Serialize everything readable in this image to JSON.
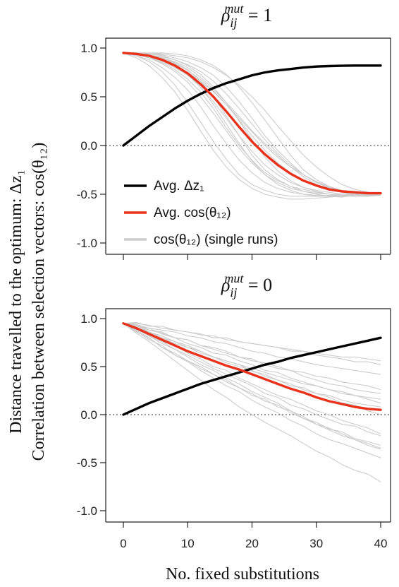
{
  "figure": {
    "ylabel_line1": "Distance travelled to the optimum: Δz₁",
    "ylabel_line2": "Correlation between selection vectors: cos(θ₁₂)",
    "xlabel": "No. fixed substitutions"
  },
  "chart_data": [
    {
      "type": "line",
      "title": "ρ_ij^mut = 1",
      "title_base": "ρ",
      "title_sub": "ij",
      "title_sup": "mut",
      "title_rest": " = 1",
      "xlabel": "No. fixed substitutions",
      "xlim": [
        0,
        40
      ],
      "ylim": [
        -1.0,
        1.0
      ],
      "x_ticks": [
        0,
        10,
        20,
        30,
        40
      ],
      "y_ticks": [
        "1.0",
        "0.5",
        "0.0",
        "-0.5",
        "-1.0"
      ],
      "y_tick_values": [
        1.0,
        0.5,
        0.0,
        -0.5,
        -1.0
      ],
      "reference_line": 0.0,
      "legend": {
        "placement": "lower-left",
        "entries": [
          {
            "label": "Avg. Δz₁",
            "color": "#000000"
          },
          {
            "label": "Avg. cos(θ₁₂)",
            "color": "#e8321c"
          },
          {
            "label": "cos(θ₁₂) (single runs)",
            "color": "#cccccc"
          }
        ]
      },
      "series": [
        {
          "name": "Avg. Δz₁",
          "color": "#000000",
          "x": [
            0,
            2,
            4,
            6,
            8,
            10,
            12,
            14,
            16,
            18,
            20,
            22,
            24,
            26,
            28,
            30,
            32,
            34,
            36,
            38,
            40
          ],
          "y": [
            0.0,
            0.1,
            0.2,
            0.29,
            0.38,
            0.46,
            0.53,
            0.59,
            0.64,
            0.68,
            0.72,
            0.75,
            0.77,
            0.785,
            0.8,
            0.81,
            0.815,
            0.818,
            0.82,
            0.82,
            0.82
          ]
        },
        {
          "name": "Avg. cos(θ₁₂)",
          "color": "#e8321c",
          "x": [
            0,
            2,
            4,
            6,
            8,
            10,
            12,
            14,
            16,
            18,
            20,
            22,
            24,
            26,
            28,
            30,
            32,
            34,
            36,
            38,
            40
          ],
          "y": [
            0.95,
            0.94,
            0.92,
            0.88,
            0.82,
            0.74,
            0.63,
            0.5,
            0.35,
            0.19,
            0.04,
            -0.09,
            -0.2,
            -0.29,
            -0.36,
            -0.41,
            -0.45,
            -0.47,
            -0.48,
            -0.49,
            -0.49
          ]
        }
      ],
      "single_runs": {
        "label": "cos(θ₁₂) (single runs)",
        "color": "#cccccc",
        "x": [
          0,
          2,
          4,
          6,
          8,
          10,
          12,
          14,
          16,
          18,
          20,
          22,
          24,
          26,
          28,
          30,
          32,
          34,
          36,
          38,
          40
        ],
        "runs": [
          [
            0.95,
            0.94,
            0.92,
            0.9,
            0.85,
            0.78,
            0.66,
            0.5,
            0.3,
            0.1,
            -0.1,
            -0.25,
            -0.35,
            -0.42,
            -0.47,
            -0.5,
            -0.52,
            -0.53,
            -0.5,
            -0.52,
            -0.51
          ],
          [
            0.95,
            0.93,
            0.9,
            0.85,
            0.78,
            0.68,
            0.55,
            0.38,
            0.18,
            0.0,
            -0.15,
            -0.28,
            -0.36,
            -0.42,
            -0.45,
            -0.48,
            -0.5,
            -0.5,
            -0.49,
            -0.5,
            -0.5
          ],
          [
            0.95,
            0.95,
            0.94,
            0.93,
            0.9,
            0.86,
            0.8,
            0.72,
            0.6,
            0.45,
            0.28,
            0.1,
            -0.05,
            -0.18,
            -0.3,
            -0.38,
            -0.44,
            -0.48,
            -0.5,
            -0.5,
            -0.49
          ],
          [
            0.95,
            0.92,
            0.88,
            0.8,
            0.7,
            0.57,
            0.4,
            0.2,
            0.02,
            -0.15,
            -0.28,
            -0.38,
            -0.44,
            -0.48,
            -0.5,
            -0.51,
            -0.52,
            -0.51,
            -0.52,
            -0.5,
            -0.51
          ],
          [
            0.95,
            0.95,
            0.93,
            0.91,
            0.88,
            0.83,
            0.76,
            0.66,
            0.53,
            0.38,
            0.22,
            0.06,
            -0.08,
            -0.2,
            -0.3,
            -0.38,
            -0.43,
            -0.46,
            -0.48,
            -0.49,
            -0.5
          ],
          [
            0.95,
            0.94,
            0.91,
            0.86,
            0.8,
            0.72,
            0.6,
            0.45,
            0.28,
            0.1,
            -0.06,
            -0.2,
            -0.3,
            -0.38,
            -0.43,
            -0.46,
            -0.48,
            -0.5,
            -0.5,
            -0.51,
            -0.5
          ],
          [
            0.95,
            0.95,
            0.95,
            0.94,
            0.92,
            0.9,
            0.86,
            0.8,
            0.72,
            0.62,
            0.5,
            0.36,
            0.2,
            0.05,
            -0.1,
            -0.22,
            -0.32,
            -0.4,
            -0.45,
            -0.48,
            -0.49
          ],
          [
            0.95,
            0.9,
            0.82,
            0.7,
            0.55,
            0.36,
            0.15,
            -0.05,
            -0.22,
            -0.35,
            -0.44,
            -0.5,
            -0.53,
            -0.55,
            -0.55,
            -0.54,
            -0.53,
            -0.52,
            -0.52,
            -0.52,
            -0.5
          ],
          [
            0.95,
            0.94,
            0.92,
            0.89,
            0.84,
            0.77,
            0.68,
            0.56,
            0.42,
            0.26,
            0.1,
            -0.05,
            -0.18,
            -0.28,
            -0.36,
            -0.42,
            -0.46,
            -0.48,
            -0.5,
            -0.5,
            -0.5
          ],
          [
            0.95,
            0.95,
            0.94,
            0.92,
            0.88,
            0.82,
            0.73,
            0.6,
            0.44,
            0.25,
            0.06,
            -0.12,
            -0.26,
            -0.36,
            -0.43,
            -0.47,
            -0.5,
            -0.51,
            -0.51,
            -0.5,
            -0.49
          ],
          [
            0.95,
            0.93,
            0.9,
            0.84,
            0.76,
            0.65,
            0.5,
            0.33,
            0.15,
            -0.03,
            -0.18,
            -0.3,
            -0.38,
            -0.44,
            -0.47,
            -0.49,
            -0.5,
            -0.5,
            -0.5,
            -0.5,
            -0.5
          ],
          [
            0.95,
            0.95,
            0.95,
            0.95,
            0.94,
            0.92,
            0.88,
            0.82,
            0.73,
            0.6,
            0.44,
            0.26,
            0.08,
            -0.1,
            -0.25,
            -0.35,
            -0.42,
            -0.47,
            -0.49,
            -0.5,
            -0.5
          ],
          [
            0.95,
            0.94,
            0.93,
            0.9,
            0.86,
            0.8,
            0.7,
            0.58,
            0.44,
            0.3,
            0.15,
            0.02,
            -0.1,
            -0.22,
            -0.32,
            -0.4,
            -0.45,
            -0.48,
            -0.49,
            -0.5,
            -0.49
          ],
          [
            0.95,
            0.95,
            0.93,
            0.9,
            0.84,
            0.74,
            0.6,
            0.42,
            0.22,
            0.02,
            -0.16,
            -0.3,
            -0.4,
            -0.46,
            -0.5,
            -0.52,
            -0.52,
            -0.52,
            -0.51,
            -0.51,
            -0.5
          ],
          [
            0.95,
            0.94,
            0.92,
            0.87,
            0.82,
            0.75,
            0.66,
            0.55,
            0.42,
            0.28,
            0.14,
            0.0,
            -0.12,
            -0.22,
            -0.3,
            -0.37,
            -0.42,
            -0.46,
            -0.48,
            -0.5,
            -0.5
          ],
          [
            0.95,
            0.92,
            0.86,
            0.76,
            0.62,
            0.44,
            0.24,
            0.04,
            -0.14,
            -0.3,
            -0.4,
            -0.46,
            -0.5,
            -0.52,
            -0.52,
            -0.52,
            -0.51,
            -0.51,
            -0.5,
            -0.5,
            -0.5
          ]
        ]
      }
    },
    {
      "type": "line",
      "title": "ρ_ij^mut = 0",
      "title_base": "ρ",
      "title_sub": "ij",
      "title_sup": "mut",
      "title_rest": " = 0",
      "xlabel": "No. fixed substitutions",
      "xlim": [
        0,
        40
      ],
      "ylim": [
        -1.0,
        1.0
      ],
      "x_ticks": [
        0,
        10,
        20,
        30,
        40
      ],
      "x_tick_labels": [
        "0",
        "10",
        "20",
        "30",
        "40"
      ],
      "y_ticks": [
        "1.0",
        "0.5",
        "0.0",
        "-0.5",
        "-1.0"
      ],
      "y_tick_values": [
        1.0,
        0.5,
        0.0,
        -0.5,
        -1.0
      ],
      "reference_line": 0.0,
      "series": [
        {
          "name": "Avg. Δz₁",
          "color": "#000000",
          "x": [
            0,
            2,
            4,
            6,
            8,
            10,
            12,
            14,
            16,
            18,
            20,
            22,
            24,
            26,
            28,
            30,
            32,
            34,
            36,
            38,
            40
          ],
          "y": [
            0.0,
            0.06,
            0.12,
            0.17,
            0.22,
            0.27,
            0.32,
            0.36,
            0.4,
            0.44,
            0.48,
            0.52,
            0.55,
            0.59,
            0.62,
            0.65,
            0.68,
            0.71,
            0.74,
            0.77,
            0.8
          ]
        },
        {
          "name": "Avg. cos(θ₁₂)",
          "color": "#e8321c",
          "x": [
            0,
            2,
            4,
            6,
            8,
            10,
            12,
            14,
            16,
            18,
            20,
            22,
            24,
            26,
            28,
            30,
            32,
            34,
            36,
            38,
            40
          ],
          "y": [
            0.95,
            0.9,
            0.84,
            0.78,
            0.72,
            0.66,
            0.61,
            0.56,
            0.51,
            0.47,
            0.42,
            0.37,
            0.32,
            0.27,
            0.23,
            0.18,
            0.14,
            0.11,
            0.08,
            0.06,
            0.05
          ]
        }
      ],
      "single_runs": {
        "label": "cos(θ₁₂) (single runs)",
        "color": "#cccccc",
        "x": [
          0,
          2,
          4,
          6,
          8,
          10,
          12,
          14,
          16,
          18,
          20,
          22,
          24,
          26,
          28,
          30,
          32,
          34,
          36,
          38,
          40
        ],
        "runs": [
          [
            0.95,
            0.92,
            0.88,
            0.85,
            0.8,
            0.78,
            0.72,
            0.7,
            0.66,
            0.6,
            0.58,
            0.52,
            0.48,
            0.46,
            0.4,
            0.36,
            0.32,
            0.3,
            0.26,
            0.24,
            0.22
          ],
          [
            0.95,
            0.88,
            0.8,
            0.7,
            0.62,
            0.55,
            0.46,
            0.38,
            0.3,
            0.24,
            0.15,
            0.08,
            0.02,
            -0.06,
            -0.12,
            -0.2,
            -0.26,
            -0.3,
            -0.35,
            -0.4,
            -0.45
          ],
          [
            0.95,
            0.94,
            0.9,
            0.88,
            0.86,
            0.82,
            0.8,
            0.76,
            0.74,
            0.7,
            0.66,
            0.64,
            0.6,
            0.58,
            0.55,
            0.52,
            0.5,
            0.48,
            0.46,
            0.44,
            0.42
          ],
          [
            0.95,
            0.85,
            0.76,
            0.66,
            0.56,
            0.46,
            0.36,
            0.26,
            0.18,
            0.08,
            0.0,
            -0.08,
            -0.15,
            -0.22,
            -0.3,
            -0.38,
            -0.44,
            -0.52,
            -0.58,
            -0.62,
            -0.7
          ],
          [
            0.95,
            0.9,
            0.86,
            0.8,
            0.74,
            0.7,
            0.64,
            0.6,
            0.54,
            0.5,
            0.46,
            0.4,
            0.36,
            0.32,
            0.26,
            0.22,
            0.2,
            0.15,
            0.12,
            0.1,
            0.08
          ],
          [
            0.95,
            0.93,
            0.86,
            0.82,
            0.76,
            0.72,
            0.66,
            0.6,
            0.56,
            0.52,
            0.45,
            0.42,
            0.36,
            0.3,
            0.28,
            0.22,
            0.18,
            0.12,
            0.1,
            0.04,
            0.0
          ],
          [
            0.95,
            0.9,
            0.82,
            0.74,
            0.68,
            0.6,
            0.52,
            0.46,
            0.38,
            0.32,
            0.24,
            0.18,
            0.12,
            0.04,
            -0.02,
            -0.1,
            -0.14,
            -0.2,
            -0.26,
            -0.3,
            -0.35
          ],
          [
            0.95,
            0.95,
            0.93,
            0.9,
            0.88,
            0.86,
            0.83,
            0.82,
            0.78,
            0.76,
            0.74,
            0.72,
            0.7,
            0.68,
            0.66,
            0.64,
            0.62,
            0.6,
            0.6,
            0.58,
            0.56
          ],
          [
            0.95,
            0.87,
            0.78,
            0.72,
            0.62,
            0.56,
            0.48,
            0.42,
            0.34,
            0.28,
            0.2,
            0.16,
            0.08,
            0.04,
            -0.04,
            -0.08,
            -0.15,
            -0.18,
            -0.25,
            -0.28,
            -0.32
          ],
          [
            0.95,
            0.92,
            0.9,
            0.84,
            0.8,
            0.74,
            0.7,
            0.64,
            0.62,
            0.56,
            0.52,
            0.46,
            0.44,
            0.38,
            0.34,
            0.3,
            0.26,
            0.22,
            0.2,
            0.16,
            0.12
          ],
          [
            0.95,
            0.9,
            0.84,
            0.76,
            0.72,
            0.64,
            0.58,
            0.5,
            0.46,
            0.38,
            0.32,
            0.26,
            0.2,
            0.16,
            0.1,
            0.04,
            0.0,
            -0.06,
            -0.1,
            -0.14,
            -0.2
          ],
          [
            0.95,
            0.96,
            0.92,
            0.92,
            0.88,
            0.86,
            0.84,
            0.8,
            0.8,
            0.76,
            0.74,
            0.72,
            0.7,
            0.66,
            0.66,
            0.62,
            0.6,
            0.58,
            0.55,
            0.55,
            0.52
          ],
          [
            0.95,
            0.86,
            0.8,
            0.7,
            0.64,
            0.56,
            0.5,
            0.42,
            0.36,
            0.28,
            0.22,
            0.14,
            0.1,
            0.02,
            -0.04,
            -0.1,
            -0.16,
            -0.22,
            -0.26,
            -0.32,
            -0.36
          ],
          [
            0.95,
            0.91,
            0.86,
            0.8,
            0.76,
            0.7,
            0.66,
            0.6,
            0.56,
            0.52,
            0.48,
            0.44,
            0.4,
            0.36,
            0.32,
            0.3,
            0.26,
            0.24,
            0.2,
            0.18,
            0.16
          ],
          [
            0.95,
            0.89,
            0.82,
            0.76,
            0.68,
            0.62,
            0.55,
            0.48,
            0.42,
            0.36,
            0.3,
            0.22,
            0.18,
            0.1,
            0.06,
            0.0,
            -0.05,
            -0.1,
            -0.12,
            -0.18,
            -0.22
          ],
          [
            0.95,
            0.94,
            0.88,
            0.86,
            0.8,
            0.78,
            0.72,
            0.68,
            0.64,
            0.6,
            0.56,
            0.54,
            0.5,
            0.46,
            0.44,
            0.4,
            0.38,
            0.34,
            0.32,
            0.3,
            0.26
          ]
        ]
      }
    }
  ]
}
